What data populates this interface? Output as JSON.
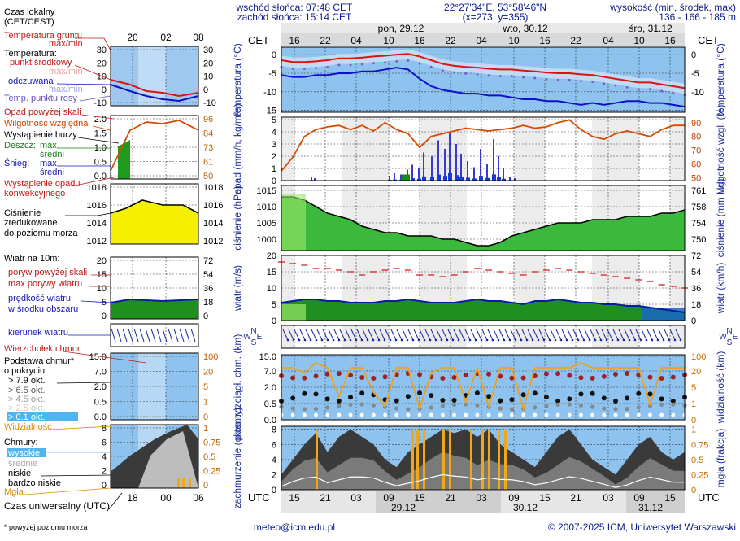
{
  "header": {
    "sunrise": "wschód słońca: 07:48 CET",
    "sunset": "zachód słońca: 15:14 CET",
    "coords": "22°27'34\"E, 53°58'46\"N",
    "grid": "(x=273,  y=355)",
    "elev_title": "wysokość (min, środek, max)",
    "elev_values": "136 - 166 - 185 m"
  },
  "footer": {
    "note": "* powyżej poziomu morza",
    "email": "meteo@icm.edu.pl",
    "copyright": "© 2007-2025 ICM, Uniwersytet Warszawski"
  },
  "legend": {
    "local_time": "Czas lokalny",
    "local_time2": "(CET/CEST)",
    "soil_temp": "Temperatura gruntu",
    "maxmin1": "max/min",
    "temperatura": "Temperatura:",
    "midpoint": "punkt środkowy",
    "maxmin2": "max/min",
    "felt": "odczuwana",
    "maxmin3": "max/min",
    "dew": "Temp. punktu rosy",
    "precip_above": "Opad powyżej skali",
    "humidity": "Wilgotność względna",
    "storm": "Wystąpienie burzy",
    "rain": "Deszcz:",
    "rain_max": "max",
    "rain_mid": "średni",
    "snow": "Śnieg:",
    "snow_max": "max",
    "snow_mid": "średni",
    "conv": "Wystąpienie opadu",
    "conv2": "konwekcyjnego",
    "pressure1": "Ciśnienie",
    "pressure2": "zredukowane",
    "pressure3": "do poziomu morza",
    "wind_title": "Wiatr na 10m:",
    "gust_above": "poryw powyżej skali",
    "gust_max": "max porywy wiatru",
    "wind_speed": "prędkość wiatru",
    "wind_area": "w środku obszaru",
    "wind_dir": "kierunek wiatru",
    "cloud_top": "Wierzchołek chmur",
    "cloud_base": "Podstawa chmur*",
    "cover": "o pokryciu",
    "okt79": "> 7.9 okt.",
    "okt65": "> 6.5 okt.",
    "okt45": "> 4.5 okt.",
    "okt25": "> 2.5 okt.",
    "okt01": "> 0.1 okt.",
    "visibility": "Widzialność",
    "clouds": "Chmury:",
    "high": "wysokie",
    "mid": "średnie",
    "low": "niskie",
    "vlow": "bardzo niskie",
    "fog": "Mgła",
    "utc": "Czas uniwersalny (UTC)"
  },
  "chart_data": {
    "type": "meteogram",
    "cet_label": "CET",
    "utc_label": "UTC",
    "top_hours": [
      "16",
      "22",
      "04",
      "10",
      "16",
      "22",
      "04",
      "10",
      "16",
      "22",
      "04",
      "10",
      "16"
    ],
    "bottom_hours": [
      "15",
      "21",
      "03",
      "09",
      "15",
      "21",
      "03",
      "09",
      "15",
      "21",
      "03",
      "09",
      "15"
    ],
    "days_top": [
      "pon, 29.12",
      "wto, 30.12",
      "śro, 31.12"
    ],
    "days_bottom": [
      "29.12",
      "30.12",
      "31.12"
    ],
    "mini_top_hours": [
      "20",
      "02",
      "08"
    ],
    "mini_bottom_hours": [
      "18",
      "00",
      "06"
    ],
    "panels": {
      "temperature": {
        "ylabel_left": "temperatura (°C)",
        "ylabel_right": "temperatura (°C)",
        "ticks_left": [
          "0",
          "-5",
          "-10",
          "-15"
        ],
        "ticks_right": [
          "0",
          "-5",
          "-10"
        ]
      },
      "precip": {
        "ylabel_left": "opad (mm/h, kg/m²h)",
        "ylabel_right": "wilgotność wzgl. (%)",
        "ticks_left": [
          "5",
          "4",
          "3",
          "2",
          "1",
          "0"
        ],
        "ticks_right": [
          "90",
          "80",
          "70",
          "60",
          "50"
        ]
      },
      "pressure": {
        "ylabel_left": "ciśnienie (hPa)",
        "ylabel_right": "ciśnienie (mm Hg)",
        "ticks_left": [
          "1015",
          "1010",
          "1005",
          "1000"
        ],
        "ticks_right": [
          "761",
          "758",
          "754",
          "750"
        ]
      },
      "wind": {
        "ylabel_left": "wiatr (m/s)",
        "ylabel_right": "wiatr (km/h)",
        "ticks_left": [
          "20",
          "15",
          "10",
          "5",
          "0"
        ],
        "ticks_right": [
          "72",
          "54",
          "36",
          "18",
          "0"
        ]
      },
      "clouds": {
        "ylabel_left": "pion. rozciągł. chm. (km)",
        "ylabel_right": "widzialność (km)",
        "ticks_left": [
          "15.0",
          "7.0",
          "2.0",
          "0.5",
          "0.0"
        ],
        "ticks_right": [
          "100",
          "20",
          "5",
          "1",
          "0"
        ]
      },
      "cover": {
        "ylabel_left": "zachmurzenie (oktanty)",
        "ylabel_right": "mgła (frakcja)",
        "ticks_left": [
          "8",
          "6",
          "4",
          "2",
          "0"
        ],
        "ticks_right": [
          "1",
          "0.75",
          "0.5",
          "0.25",
          "0"
        ]
      }
    },
    "compass": [
      "N",
      "W",
      "E",
      "S"
    ],
    "legend_mini": {
      "temp_ticks_left": [
        "30",
        "20",
        "10",
        "0",
        "-10"
      ],
      "temp_ticks_right": [
        "30",
        "20",
        "10",
        "0",
        "-10"
      ],
      "precip_ticks_left": [
        "2.0",
        "1.5",
        "1.0",
        "0.5",
        "0.0"
      ],
      "precip_ticks_right": [
        "96",
        "84",
        "73",
        "61",
        "50"
      ],
      "pressure_ticks_left": [
        "1018",
        "1016",
        "1014",
        "1012"
      ],
      "pressure_ticks_right": [
        "1018",
        "1016",
        "1014",
        "1012"
      ],
      "wind_ticks_left": [
        "20",
        "15",
        "10",
        "5",
        "0"
      ],
      "wind_ticks_right": [
        "72",
        "54",
        "36",
        "18",
        "0"
      ],
      "cloud_ticks_left": [
        "15.0",
        "7.0",
        "2.0",
        "0.5",
        "0.0"
      ],
      "cloud_ticks_right": [
        "100",
        "20",
        "5",
        "1",
        "0"
      ],
      "cover_ticks_left": [
        "8",
        "6",
        "4",
        "2",
        "0"
      ],
      "cover_ticks_right": [
        "1",
        "0.75",
        "0.5",
        "0.25",
        "0"
      ]
    },
    "series": {
      "temperature_mid": [
        -1.5,
        -2.0,
        -2.0,
        -1.8,
        -1.5,
        -1.0,
        -1.0,
        -0.8,
        -0.5,
        -0.3,
        0.0,
        0.2,
        -0.5,
        -1.5,
        -2.5,
        -3.0,
        -3.3,
        -3.5,
        -3.8,
        -4.0,
        -4.0,
        -4.3,
        -4.5,
        -4.8,
        -5.0,
        -5.0,
        -5.3,
        -5.5,
        -6.0,
        -6.5,
        -7.0,
        -7.5,
        -7.5,
        -8.0,
        -8.5,
        -9.0
      ],
      "temperature_felt": [
        -5.5,
        -6.0,
        -6.0,
        -5.5,
        -5.5,
        -5.0,
        -5.0,
        -4.5,
        -4.5,
        -4.0,
        -3.5,
        -4.0,
        -6.5,
        -8.5,
        -9.5,
        -10.0,
        -10.5,
        -10.5,
        -11.0,
        -11.0,
        -11.5,
        -12.0,
        -12.0,
        -12.5,
        -12.5,
        -13.0,
        -13.5,
        -13.0,
        -13.5,
        -13.0,
        -12.5,
        -12.5,
        -13.0,
        -13.0,
        -13.5,
        -14.0
      ],
      "humidity": [
        55,
        65,
        80,
        85,
        87,
        88,
        85,
        88,
        84,
        90,
        85,
        82,
        72,
        80,
        82,
        84,
        86,
        85,
        84,
        85,
        86,
        88,
        86,
        87,
        90,
        92,
        85,
        80,
        78,
        82,
        84,
        82,
        80,
        85,
        88,
        88
      ],
      "pressure": [
        1013,
        1013,
        1012,
        1010,
        1008,
        1007,
        1006,
        1004,
        1003,
        1002,
        1002,
        1001,
        1001,
        1001,
        1000,
        1000,
        999,
        998,
        998,
        999,
        1001,
        1002,
        1003,
        1004,
        1005,
        1005,
        1005,
        1006,
        1006,
        1006,
        1007,
        1007,
        1007,
        1008,
        1008,
        1009
      ],
      "wind_speed": [
        5.5,
        6,
        6.5,
        6.5,
        6,
        6,
        5.5,
        5.5,
        5.5,
        6,
        6,
        6.5,
        6,
        5.5,
        5.5,
        5.5,
        6,
        6.5,
        6,
        6,
        5.5,
        5,
        6,
        6,
        6.5,
        6,
        5.5,
        5.5,
        5,
        5,
        4.5,
        4.5,
        4,
        3.5,
        3,
        2.5
      ],
      "gust_max": [
        18,
        17.5,
        17,
        16,
        16,
        15.5,
        15,
        14,
        15,
        15.5,
        16,
        15.5,
        14,
        14,
        13.5,
        14,
        15,
        16,
        15.5,
        15,
        14.5,
        14,
        15,
        15.5,
        16,
        15.5,
        15,
        14.5,
        14,
        13.5,
        13,
        12.5,
        12,
        11,
        10.5,
        10
      ]
    }
  }
}
